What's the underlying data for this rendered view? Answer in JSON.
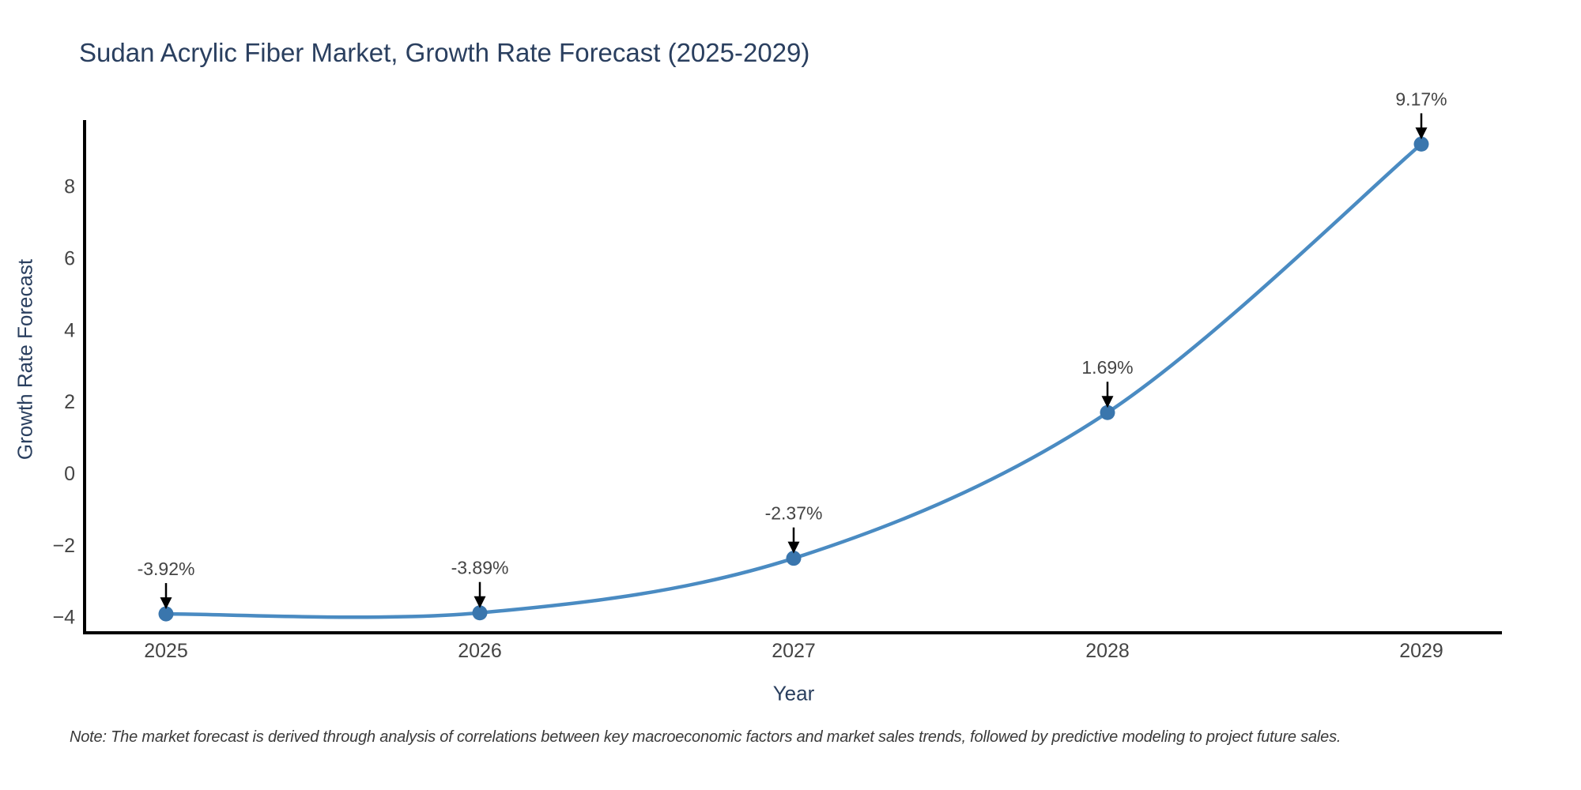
{
  "title": "Sudan Acrylic Fiber Market, Growth Rate Forecast (2025-2029)",
  "note": "Note: The market forecast is derived through analysis of correlations between key macroeconomic factors and market sales trends, followed by predictive modeling to project future sales.",
  "chart_data": {
    "type": "line",
    "line_shape": "spline",
    "title": "Sudan Acrylic Fiber Market, Growth Rate Forecast (2025-2029)",
    "xlabel": "Year",
    "ylabel": "Growth Rate Forecast",
    "categories": [
      "2025",
      "2026",
      "2027",
      "2028",
      "2029"
    ],
    "values": [
      -3.92,
      -3.89,
      -2.37,
      1.69,
      9.17
    ],
    "point_labels": [
      "-3.92%",
      "-3.89%",
      "-2.37%",
      "1.69%",
      "9.17%"
    ],
    "yticks": [
      8,
      6,
      4,
      2,
      0,
      -2,
      -4
    ],
    "ylim": [
      -4.56,
      9.84
    ],
    "grid": false,
    "legend_position": "none",
    "colors": {
      "line": "#4a8bc2",
      "marker": "#3a76ad",
      "axis": "#000000",
      "tick_label": "#444444",
      "annotation_text": "#444444",
      "annotation_arrow": "#000000",
      "title": "#2a3f5f"
    }
  }
}
